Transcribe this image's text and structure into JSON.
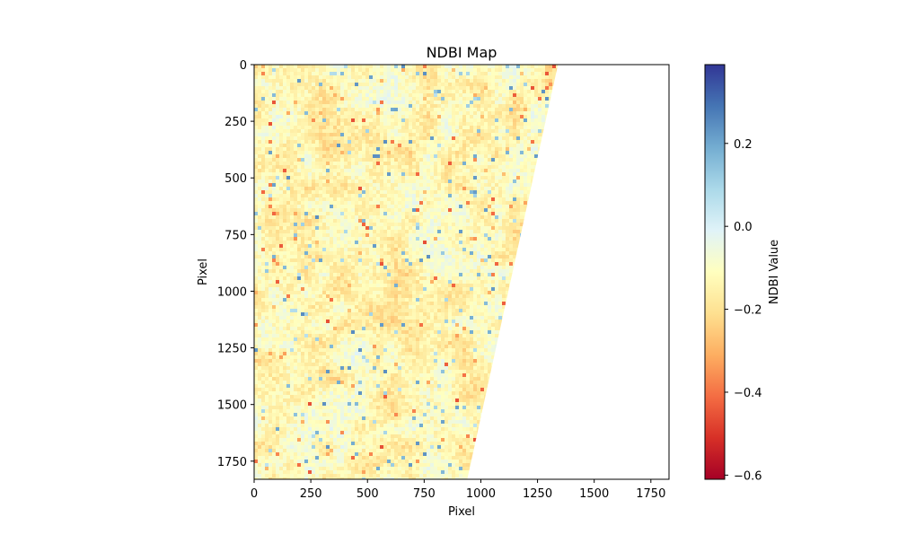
{
  "chart_data": {
    "type": "heatmap",
    "title": "NDBI Map",
    "xlabel": "Pixel",
    "ylabel": "Pixel",
    "x_ticks": [
      0,
      250,
      500,
      750,
      1000,
      1250,
      1500,
      1750
    ],
    "y_ticks": [
      0,
      250,
      500,
      750,
      1000,
      1250,
      1500,
      1750
    ],
    "xlim": [
      0,
      1830
    ],
    "ylim": [
      1830,
      0
    ],
    "colorbar": {
      "label": "NDBI Value",
      "range": [
        -0.61,
        0.39
      ],
      "ticks": [
        0.2,
        0.0,
        -0.2,
        -0.4,
        -0.6
      ],
      "tick_labels": [
        "0.2",
        "0.0",
        "−0.2",
        "−0.4",
        "−0.6"
      ],
      "colormap": "RdYlBu",
      "colors": [
        "#a50026",
        "#d73027",
        "#f46d43",
        "#fdae61",
        "#fee090",
        "#ffffbf",
        "#e0f3f8",
        "#abd9e9",
        "#74add1",
        "#4575b4",
        "#313695"
      ]
    },
    "data_extent_polygon": [
      [
        0,
        0
      ],
      [
        1340,
        0
      ],
      [
        940,
        1830
      ],
      [
        0,
        1830
      ]
    ],
    "typical_value_range": [
      -0.35,
      0.15
    ],
    "no_data_color": "#ffffff"
  }
}
